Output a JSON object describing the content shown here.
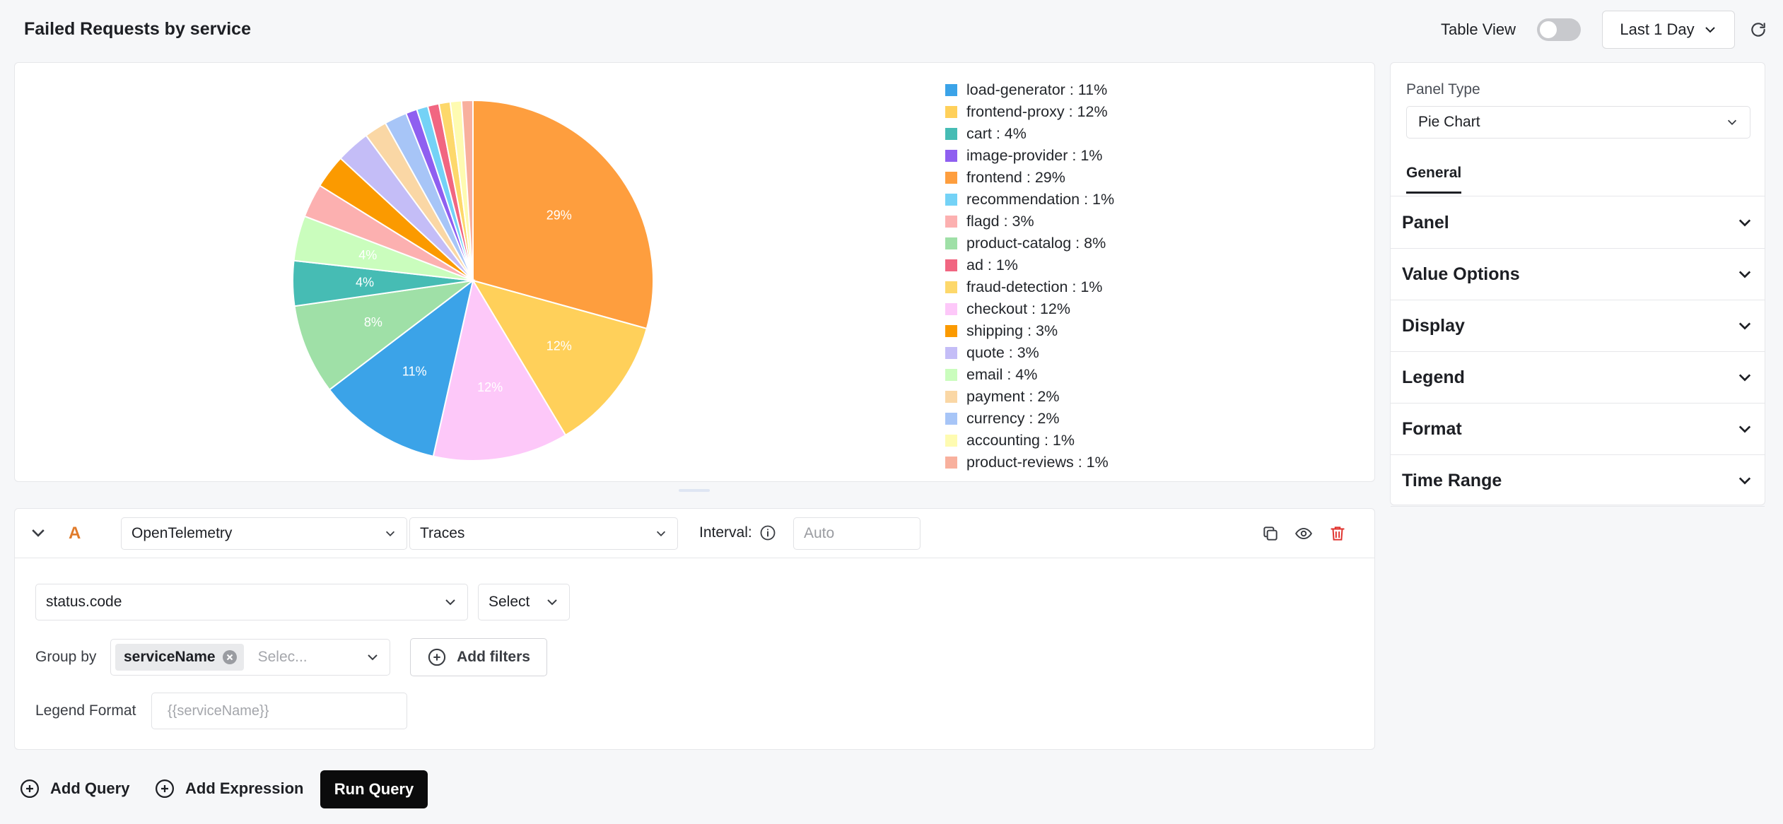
{
  "header": {
    "title": "Failed Requests by service",
    "table_view_label": "Table View",
    "time_range": "Last 1 Day"
  },
  "chart_data": {
    "type": "pie",
    "slices": [
      {
        "label": "frontend",
        "value": 29,
        "color": "#fe9e3e"
      },
      {
        "label": "frontend-proxy",
        "value": 12,
        "color": "#ffd05a"
      },
      {
        "label": "checkout",
        "value": 12,
        "color": "#fdc8f9"
      },
      {
        "label": "load-generator",
        "value": 11,
        "color": "#3ba3e8"
      },
      {
        "label": "product-catalog",
        "value": 8,
        "color": "#9fe0a7"
      },
      {
        "label": "cart",
        "value": 4,
        "color": "#46bcb4"
      },
      {
        "label": "email",
        "value": 4,
        "color": "#cafdbd"
      },
      {
        "label": "flagd",
        "value": 3,
        "color": "#fcb0b0"
      },
      {
        "label": "shipping",
        "value": 3,
        "color": "#fb9a00"
      },
      {
        "label": "quote",
        "value": 3,
        "color": "#c4bdf7"
      },
      {
        "label": "payment",
        "value": 2,
        "color": "#fad7a5"
      },
      {
        "label": "currency",
        "value": 2,
        "color": "#a7c5f7"
      },
      {
        "label": "image-provider",
        "value": 1,
        "color": "#8f5ff0"
      },
      {
        "label": "recommendation",
        "value": 1,
        "color": "#74d2f6"
      },
      {
        "label": "ad",
        "value": 1,
        "color": "#f16681"
      },
      {
        "label": "fraud-detection",
        "value": 1,
        "color": "#fdd86b"
      },
      {
        "label": "accounting",
        "value": 1,
        "color": "#fefbb1"
      },
      {
        "label": "product-reviews",
        "value": 1,
        "color": "#f8b09d"
      }
    ],
    "slice_labels": [
      "29%",
      "12%",
      "12%",
      "11%",
      "8%",
      "4%",
      "4%"
    ],
    "legend": [
      {
        "text": "load-generator : 11%",
        "color": "#3ba3e8"
      },
      {
        "text": "frontend-proxy : 12%",
        "color": "#ffd05a"
      },
      {
        "text": "cart : 4%",
        "color": "#46bcb4"
      },
      {
        "text": "image-provider : 1%",
        "color": "#8f5ff0"
      },
      {
        "text": "frontend : 29%",
        "color": "#fe9e3e"
      },
      {
        "text": "recommendation : 1%",
        "color": "#74d2f6"
      },
      {
        "text": "flagd : 3%",
        "color": "#fcb0b0"
      },
      {
        "text": "product-catalog : 8%",
        "color": "#9fe0a7"
      },
      {
        "text": "ad : 1%",
        "color": "#f16681"
      },
      {
        "text": "fraud-detection : 1%",
        "color": "#fdd86b"
      },
      {
        "text": "checkout : 12%",
        "color": "#fdc8f9"
      },
      {
        "text": "shipping : 3%",
        "color": "#fb9a00"
      },
      {
        "text": "quote : 3%",
        "color": "#c4bdf7"
      },
      {
        "text": "email : 4%",
        "color": "#cafdbd"
      },
      {
        "text": "payment : 2%",
        "color": "#fad7a5"
      },
      {
        "text": "currency : 2%",
        "color": "#a7c5f7"
      },
      {
        "text": "accounting : 1%",
        "color": "#fefbb1"
      },
      {
        "text": "product-reviews : 1%",
        "color": "#f8b09d"
      }
    ],
    "legend_position": "right"
  },
  "side_panel": {
    "panel_type_label": "Panel Type",
    "panel_type_value": "Pie Chart",
    "tab": "General",
    "sections": [
      "Panel",
      "Value Options",
      "Display",
      "Legend",
      "Format",
      "Time Range"
    ]
  },
  "query": {
    "letter": "A",
    "source": "OpenTelemetry",
    "signal": "Traces",
    "interval_label": "Interval:",
    "interval_placeholder": "Auto",
    "attribute": "status.code",
    "aggregation": "Select",
    "group_by_label": "Group by",
    "group_by_chip": "serviceName",
    "group_by_placeholder": "Selec...",
    "add_filters": "Add filters",
    "legend_format_label": "Legend Format",
    "legend_format_placeholder": "{{serviceName}}"
  },
  "footer": {
    "add_query": "Add Query",
    "add_expression": "Add Expression",
    "run_query": "Run Query"
  },
  "colors": {
    "accent_letter": "#e07b2b",
    "delete_icon": "#e0312c",
    "run_button": "#0b0b0c"
  }
}
